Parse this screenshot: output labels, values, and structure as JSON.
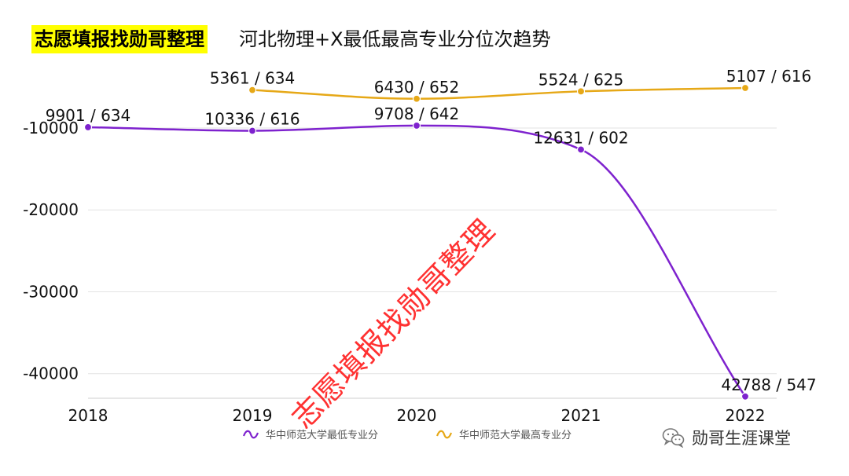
{
  "header": {
    "highlight_title": "志愿填报找勋哥整理",
    "title": "河北物理+X最低最高专业分位次趋势"
  },
  "watermark": {
    "text": "志愿填报找勋哥整理",
    "color": "#ff2020"
  },
  "brand": {
    "icon": "wechat-icon",
    "name": "勋哥生涯课堂"
  },
  "chart_data": {
    "type": "line",
    "categories": [
      "2018",
      "2019",
      "2020",
      "2021",
      "2022"
    ],
    "ylim": [
      -43000,
      -3000
    ],
    "y_ticks": [
      -10000,
      -20000,
      -30000,
      -40000
    ],
    "y_tick_labels": [
      "-10000",
      "-20000",
      "-30000",
      "-40000"
    ],
    "grid": true,
    "legend_position": "bottom",
    "series": [
      {
        "name": "华中师范大学最低专业分",
        "color": "#7e22ce",
        "values": [
          -9901,
          -10336,
          -9708,
          -12631,
          -42788
        ],
        "labels": [
          "9901 / 634",
          "10336 / 616",
          "9708 / 642",
          "12631 / 602",
          "42788 / 547"
        ]
      },
      {
        "name": "华中师范大学最高专业分",
        "color": "#e6a817",
        "values": [
          null,
          -5361,
          -6430,
          -5524,
          -5107
        ],
        "labels": [
          "",
          "5361 / 634",
          "6430 / 652",
          "5524 / 625",
          "5107 / 616"
        ]
      }
    ]
  }
}
